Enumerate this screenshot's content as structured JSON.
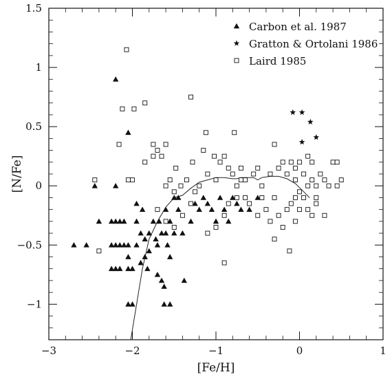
{
  "chart_data": {
    "type": "scatter",
    "title": "",
    "xlabel": "[Fe/H]",
    "ylabel": "[N/Fe]",
    "xlim": [
      -3,
      1
    ],
    "ylim": [
      -1.3,
      1.5
    ],
    "x_ticks": [
      -3,
      -2,
      -1,
      0,
      1
    ],
    "x_tick_labels": [
      "−3",
      "−2",
      "−1",
      "0",
      "1"
    ],
    "y_ticks": [
      -1,
      -0.5,
      0,
      0.5,
      1,
      1.5
    ],
    "y_tick_labels": [
      "−1",
      "−0.5",
      "0",
      "0.5",
      "1",
      "1.5"
    ],
    "grid": false,
    "legend_position": "top-right",
    "series": [
      {
        "name": "Carbon et al. 1987",
        "marker": "filled-triangle",
        "points": [
          [
            -2.7,
            -0.5
          ],
          [
            -2.55,
            -0.5
          ],
          [
            -2.45,
            0.0
          ],
          [
            -2.4,
            -0.3
          ],
          [
            -2.25,
            -0.3
          ],
          [
            -2.2,
            -0.3
          ],
          [
            -2.15,
            -0.3
          ],
          [
            -2.25,
            -0.5
          ],
          [
            -2.2,
            -0.5
          ],
          [
            -2.15,
            -0.5
          ],
          [
            -2.1,
            -0.5
          ],
          [
            -2.05,
            -0.5
          ],
          [
            -1.95,
            -0.5
          ],
          [
            -2.25,
            -0.7
          ],
          [
            -2.2,
            -0.7
          ],
          [
            -2.15,
            -0.7
          ],
          [
            -2.05,
            -0.7
          ],
          [
            -2.0,
            -0.7
          ],
          [
            -2.2,
            0.9
          ],
          [
            -2.05,
            0.45
          ],
          [
            -2.2,
            0.0
          ],
          [
            -2.1,
            -0.3
          ],
          [
            -2.05,
            -0.6
          ],
          [
            -2.05,
            -1.0
          ],
          [
            -2.0,
            -1.0
          ],
          [
            -1.95,
            -0.15
          ],
          [
            -1.95,
            -0.3
          ],
          [
            -1.9,
            -0.4
          ],
          [
            -1.88,
            -0.2
          ],
          [
            -1.85,
            -0.6
          ],
          [
            -1.85,
            -0.45
          ],
          [
            -1.82,
            -0.7
          ],
          [
            -1.8,
            -0.4
          ],
          [
            -1.8,
            -0.55
          ],
          [
            -1.75,
            -0.3
          ],
          [
            -1.72,
            -0.45
          ],
          [
            -1.7,
            -0.5
          ],
          [
            -1.7,
            -0.75
          ],
          [
            -1.68,
            -0.3
          ],
          [
            -1.65,
            -0.4
          ],
          [
            -1.65,
            -0.8
          ],
          [
            -1.62,
            -0.85
          ],
          [
            -1.6,
            -0.4
          ],
          [
            -1.6,
            -0.2
          ],
          [
            -1.58,
            -0.5
          ],
          [
            -1.55,
            -0.6
          ],
          [
            -1.55,
            -0.3
          ],
          [
            -1.5,
            -0.4
          ],
          [
            -1.5,
            -0.1
          ],
          [
            -1.45,
            -0.1
          ],
          [
            -1.45,
            -0.2
          ],
          [
            -1.4,
            -0.4
          ],
          [
            -1.38,
            -0.8
          ],
          [
            -1.3,
            -0.3
          ],
          [
            -1.25,
            -0.15
          ],
          [
            -1.2,
            -0.2
          ],
          [
            -1.15,
            -0.1
          ],
          [
            -1.1,
            -0.15
          ],
          [
            -1.05,
            -0.2
          ],
          [
            -1.0,
            -0.3
          ],
          [
            -0.95,
            -0.1
          ],
          [
            -0.9,
            -0.2
          ],
          [
            -0.85,
            -0.3
          ],
          [
            -0.8,
            -0.1
          ],
          [
            -0.75,
            -0.15
          ],
          [
            -0.7,
            -0.2
          ],
          [
            -0.6,
            -0.2
          ],
          [
            -0.5,
            -0.1
          ],
          [
            -1.62,
            -1.0
          ],
          [
            -1.55,
            -1.0
          ],
          [
            -1.9,
            -0.65
          ]
        ]
      },
      {
        "name": "Gratton & Ortolani 1986",
        "marker": "star",
        "points": [
          [
            -0.08,
            0.62
          ],
          [
            0.03,
            0.62
          ],
          [
            0.13,
            0.54
          ],
          [
            0.2,
            0.41
          ],
          [
            0.03,
            0.37
          ]
        ]
      },
      {
        "name": "Laird 1985",
        "marker": "open-square",
        "points": [
          [
            -2.07,
            1.15
          ],
          [
            -2.12,
            0.65
          ],
          [
            -1.98,
            0.65
          ],
          [
            -1.85,
            0.7
          ],
          [
            -1.3,
            0.75
          ],
          [
            -2.16,
            0.35
          ],
          [
            -1.75,
            0.35
          ],
          [
            -1.6,
            0.35
          ],
          [
            -1.12,
            0.45
          ],
          [
            -0.78,
            0.45
          ],
          [
            -2.05,
            0.05
          ],
          [
            -2.0,
            0.05
          ],
          [
            -2.45,
            0.05
          ],
          [
            -2.4,
            -0.55
          ],
          [
            -1.85,
            0.2
          ],
          [
            -1.75,
            0.25
          ],
          [
            -1.7,
            0.3
          ],
          [
            -1.65,
            0.25
          ],
          [
            -1.55,
            0.05
          ],
          [
            -1.48,
            0.15
          ],
          [
            -1.42,
            0.0
          ],
          [
            -1.35,
            0.05
          ],
          [
            -1.28,
            0.2
          ],
          [
            -1.2,
            0.0
          ],
          [
            -1.15,
            0.3
          ],
          [
            -1.1,
            0.1
          ],
          [
            -1.02,
            0.25
          ],
          [
            -0.95,
            0.2
          ],
          [
            -0.9,
            0.25
          ],
          [
            -0.85,
            0.15
          ],
          [
            -0.8,
            0.1
          ],
          [
            -0.75,
            0.0
          ],
          [
            -0.7,
            0.15
          ],
          [
            -0.65,
            0.05
          ],
          [
            -0.55,
            0.1
          ],
          [
            -0.5,
            0.15
          ],
          [
            -0.45,
            0.0
          ],
          [
            -0.35,
            0.1
          ],
          [
            -0.3,
            0.35
          ],
          [
            -0.25,
            0.15
          ],
          [
            -0.2,
            0.2
          ],
          [
            -0.15,
            0.1
          ],
          [
            -0.1,
            0.2
          ],
          [
            -0.05,
            0.15
          ],
          [
            0.0,
            0.2
          ],
          [
            0.05,
            0.1
          ],
          [
            0.1,
            0.25
          ],
          [
            0.15,
            0.2
          ],
          [
            0.2,
            0.0
          ],
          [
            0.25,
            0.1
          ],
          [
            0.3,
            0.05
          ],
          [
            0.35,
            0.0
          ],
          [
            0.4,
            0.2
          ],
          [
            0.45,
            0.2
          ],
          [
            0.5,
            0.05
          ],
          [
            -1.7,
            -0.2
          ],
          [
            -1.6,
            -0.3
          ],
          [
            -1.5,
            -0.35
          ],
          [
            -1.4,
            -0.25
          ],
          [
            -1.3,
            -0.15
          ],
          [
            -1.25,
            -0.05
          ],
          [
            -1.1,
            -0.4
          ],
          [
            -1.0,
            -0.35
          ],
          [
            -0.9,
            -0.25
          ],
          [
            -0.85,
            -0.15
          ],
          [
            -0.75,
            -0.1
          ],
          [
            -0.65,
            -0.1
          ],
          [
            -0.6,
            -0.15
          ],
          [
            -0.5,
            -0.25
          ],
          [
            -0.4,
            -0.2
          ],
          [
            -0.35,
            -0.3
          ],
          [
            -0.3,
            -0.1
          ],
          [
            -0.25,
            -0.25
          ],
          [
            -0.2,
            -0.35
          ],
          [
            -0.15,
            -0.2
          ],
          [
            -0.1,
            -0.15
          ],
          [
            -0.05,
            -0.3
          ],
          [
            0.0,
            -0.2
          ],
          [
            0.05,
            -0.1
          ],
          [
            0.1,
            -0.2
          ],
          [
            0.15,
            -0.25
          ],
          [
            0.2,
            -0.15
          ],
          [
            0.3,
            -0.25
          ],
          [
            -0.3,
            -0.45
          ],
          [
            -0.12,
            -0.55
          ],
          [
            -0.9,
            -0.65
          ],
          [
            0.1,
            0.0
          ],
          [
            -0.05,
            0.05
          ],
          [
            0.0,
            -0.05
          ],
          [
            -1.6,
            0.0
          ],
          [
            -1.5,
            -0.05
          ],
          [
            -0.45,
            -0.1
          ],
          [
            -0.05,
            -0.1
          ],
          [
            0.2,
            -0.1
          ],
          [
            0.15,
            0.05
          ],
          [
            0.45,
            0.0
          ],
          [
            -0.7,
            0.05
          ],
          [
            -1.0,
            0.05
          ]
        ]
      }
    ],
    "model_curve": {
      "style": "thin-solid-line",
      "points": [
        [
          -2.02,
          -1.3
        ],
        [
          -1.95,
          -1.0
        ],
        [
          -1.88,
          -0.7
        ],
        [
          -1.8,
          -0.45
        ],
        [
          -1.7,
          -0.3
        ],
        [
          -1.6,
          -0.18
        ],
        [
          -1.5,
          -0.1
        ],
        [
          -1.4,
          -0.08
        ],
        [
          -1.3,
          -0.02
        ],
        [
          -1.2,
          0.03
        ],
        [
          -1.1,
          0.05
        ],
        [
          -1.0,
          0.07
        ],
        [
          -0.9,
          0.07
        ],
        [
          -0.8,
          0.06
        ],
        [
          -0.75,
          0.06
        ],
        [
          -0.7,
          0.07
        ],
        [
          -0.6,
          0.07
        ],
        [
          -0.55,
          0.07
        ],
        [
          -0.5,
          0.05
        ],
        [
          -0.45,
          0.07
        ],
        [
          -0.35,
          0.08
        ],
        [
          -0.25,
          0.08
        ],
        [
          -0.15,
          0.06
        ],
        [
          -0.05,
          0.02
        ],
        [
          0.05,
          -0.05
        ],
        [
          0.12,
          -0.1
        ]
      ]
    }
  }
}
